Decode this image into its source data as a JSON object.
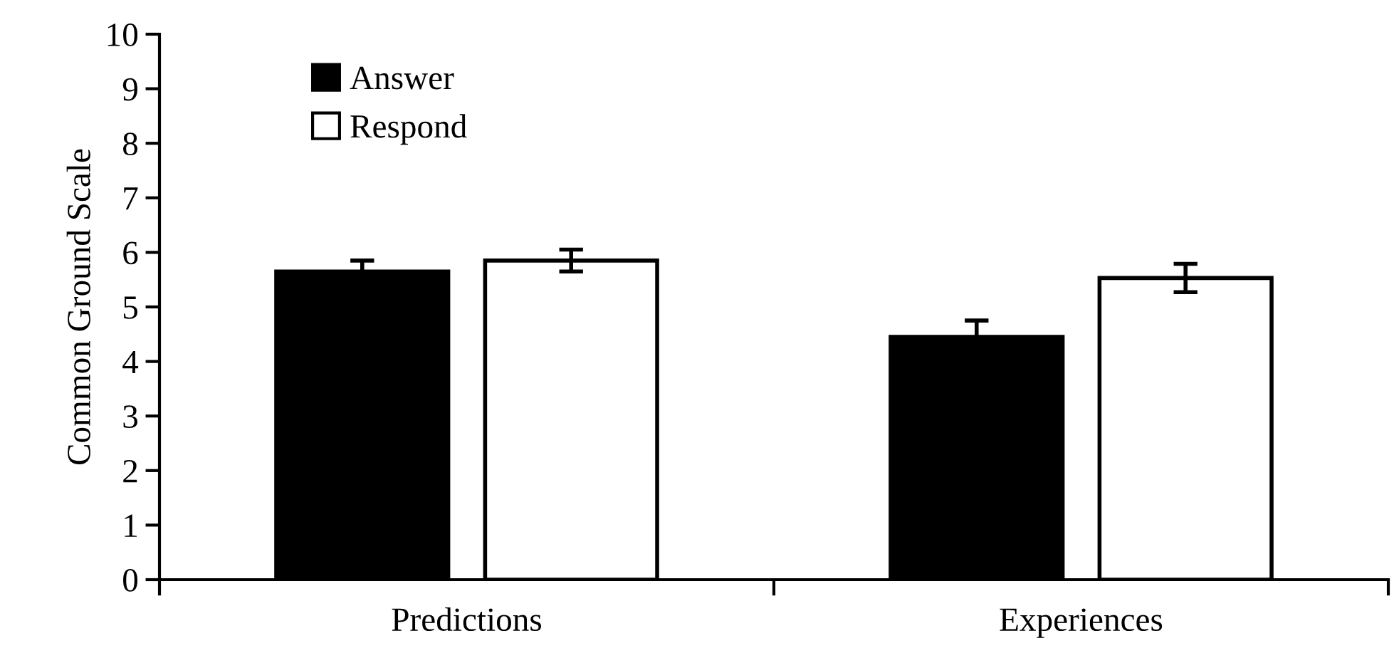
{
  "chart_data": {
    "type": "bar",
    "ylabel": "Common Ground Scale",
    "categories": [
      "Predictions",
      "Experiences"
    ],
    "series": [
      {
        "name": "Answer",
        "color": "#000000",
        "values": [
          5.65,
          4.45
        ],
        "errors": [
          0.2,
          0.3
        ]
      },
      {
        "name": "Respond",
        "color": "#ffffff",
        "values": [
          5.85,
          5.53
        ],
        "errors": [
          0.2,
          0.26
        ]
      }
    ],
    "ylim": [
      0,
      10
    ],
    "yticks": [
      0,
      1,
      2,
      3,
      4,
      5,
      6,
      7,
      8,
      9,
      10
    ],
    "legend": "top left",
    "grid": false
  }
}
